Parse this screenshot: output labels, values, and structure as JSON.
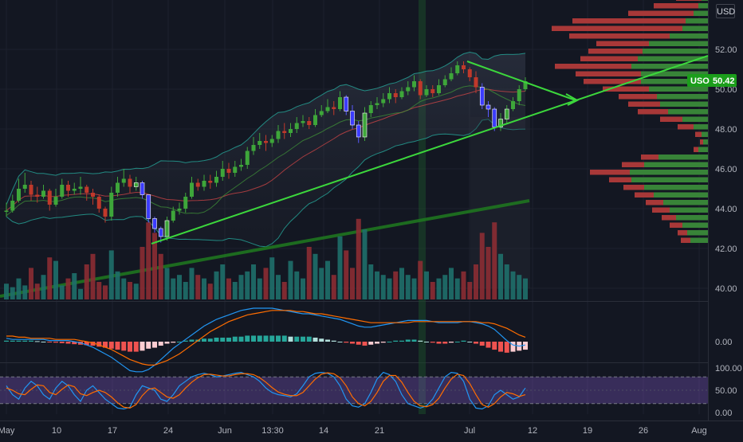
{
  "chart_data": {
    "type": "candlestick",
    "symbol": "USO",
    "currency": "USD",
    "last_price": "50.42",
    "x_ticks": [
      "May",
      "10",
      "17",
      "24",
      "Jun",
      "13:30",
      "14",
      "21",
      "Jul",
      "12",
      "19",
      "26",
      "Aug"
    ],
    "price_axis": {
      "ylim": [
        39.5,
        52.5
      ],
      "ticks": [
        "52.00",
        "50.00",
        "48.00",
        "46.00",
        "44.00",
        "42.00",
        "40.00"
      ]
    },
    "macd_axis": {
      "ticks": [
        "0.00"
      ]
    },
    "stoch_axis": {
      "ylim": [
        0,
        100
      ],
      "ticks": [
        "100.00",
        "50.00",
        "0.00"
      ],
      "bands": [
        20,
        80
      ]
    },
    "candles": {
      "start_close": 43.9,
      "closes": [
        43.9,
        44.4,
        45.0,
        45.2,
        44.7,
        44.6,
        44.9,
        44.2,
        44.6,
        45.2,
        44.9,
        45.0,
        45.1,
        44.8,
        44.6,
        44.0,
        43.6,
        44.8,
        45.3,
        45.5,
        45.1,
        45.3,
        44.7,
        43.5,
        43.0,
        42.6,
        43.4,
        43.9,
        44.0,
        44.6,
        45.3,
        45.1,
        45.4,
        45.3,
        45.6,
        46.0,
        45.8,
        46.1,
        46.2,
        46.9,
        47.2,
        47.4,
        47.3,
        47.5,
        47.9,
        47.8,
        48.0,
        48.3,
        48.4,
        48.2,
        48.7,
        48.9,
        49.1,
        49.0,
        49.6,
        48.9,
        48.2,
        47.6,
        48.8,
        49.2,
        49.3,
        49.5,
        49.8,
        49.6,
        49.9,
        50.1,
        50.4,
        49.7,
        50.0,
        49.8,
        50.2,
        50.5,
        50.8,
        51.2,
        51.0,
        50.6,
        50.1,
        49.2,
        49.0,
        48.1,
        48.5,
        49.0,
        49.4,
        50.0,
        50.4
      ],
      "highs": [
        44.3,
        44.7,
        45.5,
        45.8,
        45.4,
        45.1,
        45.2,
        45.0,
        45.0,
        45.5,
        45.4,
        45.3,
        45.6,
        45.2,
        45.0,
        44.7,
        44.1,
        45.1,
        45.6,
        46.0,
        45.7,
        45.6,
        45.4,
        44.2,
        43.6,
        43.1,
        43.6,
        44.1,
        44.3,
        44.8,
        45.6,
        45.5,
        45.7,
        45.7,
        45.9,
        46.4,
        46.3,
        46.4,
        46.5,
        47.1,
        47.6,
        47.8,
        47.7,
        47.7,
        48.2,
        48.3,
        48.3,
        48.6,
        48.7,
        48.6,
        49.0,
        49.2,
        49.5,
        49.4,
        49.9,
        49.7,
        49.2,
        48.4,
        49.1,
        49.4,
        49.6,
        49.8,
        50.1,
        50.0,
        50.1,
        50.4,
        50.7,
        50.5,
        50.2,
        50.2,
        50.5,
        50.7,
        51.1,
        51.4,
        51.4,
        51.1,
        50.9,
        50.3,
        49.4,
        49.1,
        48.8,
        49.2,
        49.6,
        50.2,
        50.6
      ],
      "lows": [
        43.6,
        43.8,
        44.3,
        44.8,
        44.4,
        44.3,
        44.5,
        43.9,
        44.1,
        44.5,
        44.6,
        44.7,
        44.7,
        44.4,
        44.2,
        43.8,
        43.3,
        43.4,
        44.6,
        45.1,
        44.8,
        44.9,
        44.5,
        43.3,
        42.8,
        42.3,
        42.4,
        43.3,
        43.7,
        43.8,
        44.5,
        44.9,
        44.9,
        45.0,
        45.1,
        45.4,
        45.5,
        45.6,
        45.9,
        46.0,
        46.7,
        47.0,
        46.9,
        47.1,
        47.3,
        47.5,
        47.6,
        47.8,
        48.1,
        48.0,
        48.1,
        48.6,
        48.8,
        48.7,
        48.9,
        48.7,
        48.0,
        47.3,
        47.4,
        48.6,
        49.0,
        49.1,
        49.3,
        49.3,
        49.5,
        49.7,
        49.9,
        49.5,
        49.6,
        49.6,
        49.7,
        50.1,
        50.4,
        50.7,
        50.8,
        50.4,
        49.8,
        49.0,
        48.6,
        47.9,
        47.9,
        48.3,
        48.9,
        49.2,
        49.9
      ],
      "volumes": [
        9,
        7,
        12,
        8,
        18,
        9,
        14,
        24,
        22,
        8,
        12,
        15,
        6,
        20,
        26,
        10,
        8,
        28,
        16,
        12,
        10,
        9,
        30,
        44,
        38,
        26,
        18,
        12,
        14,
        10,
        18,
        14,
        12,
        9,
        16,
        20,
        12,
        10,
        14,
        16,
        20,
        12,
        18,
        24,
        14,
        10,
        22,
        16,
        12,
        30,
        26,
        18,
        22,
        14,
        36,
        28,
        18,
        46,
        40,
        20,
        16,
        14,
        12,
        16,
        18,
        14,
        12,
        22,
        16,
        10,
        12,
        14,
        18,
        12,
        16,
        10,
        20,
        38,
        30,
        44,
        26,
        20,
        16,
        14,
        12
      ]
    },
    "volume_profile": {
      "price_start": 42.4,
      "price_step": 0.38,
      "total": [
        1.7,
        1.9,
        2.4,
        2.9,
        3.5,
        3.9,
        4.6,
        5.3,
        6.2,
        7.4,
        5.4,
        4.2,
        0.9,
        0.5,
        0.8,
        1.9,
        3.0,
        4.4,
        5.0,
        5.6,
        6.6,
        7.8,
        8.3,
        9.6,
        8.0,
        7.5,
        7.0,
        8.7,
        9.8,
        8.5,
        5.0,
        3.4,
        2.0,
        1.2,
        0.7
      ],
      "buy": [
        1.1,
        1.3,
        1.6,
        2.0,
        2.4,
        2.8,
        3.4,
        4.0,
        4.8,
        4.9,
        4.0,
        3.1,
        0.6,
        0.3,
        0.4,
        0.9,
        1.6,
        2.5,
        3.0,
        3.2,
        3.7,
        4.2,
        4.2,
        4.8,
        4.4,
        4.1,
        3.7,
        2.4,
        1.6,
        1.4,
        0.9,
        0.6,
        0.4,
        0.3,
        0.2
      ]
    },
    "macd": {
      "hist": [
        1,
        1,
        1,
        1,
        1,
        0.5,
        0,
        -0.5,
        -1,
        -1.5,
        -2,
        -2.5,
        -3,
        -3.5,
        -4,
        -5,
        -6,
        -7,
        -8,
        -9,
        -10,
        -10,
        -9,
        -7,
        -6,
        -4,
        -2,
        -1,
        0,
        1,
        2,
        2,
        3,
        3,
        4,
        4,
        4,
        5,
        5,
        6,
        6,
        6,
        6,
        6,
        6,
        6,
        5,
        5,
        5,
        5,
        4,
        3,
        2,
        1,
        0,
        -1,
        -2,
        -3,
        -4,
        -3,
        -2,
        -1,
        0,
        1,
        1,
        2,
        2,
        1,
        0,
        -1,
        -2,
        -2,
        -1,
        0,
        1,
        0,
        -2,
        -4,
        -6,
        -8,
        -10,
        -11,
        -10,
        -9,
        -8
      ],
      "macd_line": [
        3,
        2,
        2,
        2,
        2,
        2,
        2,
        1,
        1,
        1,
        1,
        0,
        -1,
        -3,
        -5,
        -8,
        -11,
        -14,
        -18,
        -22,
        -26,
        -27,
        -27,
        -25,
        -21,
        -16,
        -11,
        -6,
        -2,
        2,
        6,
        10,
        14,
        17,
        20,
        22,
        24,
        26,
        28,
        29,
        30,
        30,
        30,
        30,
        29,
        28,
        27,
        26,
        25,
        25,
        24,
        23,
        22,
        21,
        20,
        18,
        16,
        14,
        13,
        13,
        14,
        15,
        16,
        17,
        18,
        19,
        19,
        19,
        19,
        18,
        17,
        17,
        17,
        17,
        18,
        18,
        17,
        16,
        14,
        11,
        6,
        1,
        -3,
        -4,
        -3
      ],
      "signal_line": [
        5,
        5,
        4,
        4,
        3,
        3,
        3,
        3,
        2,
        2,
        2,
        2,
        1,
        0,
        -1,
        -3,
        -5,
        -7,
        -10,
        -13,
        -16,
        -18,
        -20,
        -21,
        -21,
        -19,
        -17,
        -14,
        -11,
        -7,
        -3,
        1,
        5,
        9,
        12,
        15,
        18,
        20,
        22,
        24,
        25,
        26,
        27,
        28,
        28,
        28,
        28,
        27,
        27,
        26,
        25,
        25,
        24,
        23,
        22,
        21,
        20,
        19,
        18,
        17,
        17,
        17,
        17,
        17,
        17,
        17,
        18,
        18,
        18,
        18,
        18,
        18,
        18,
        18,
        18,
        18,
        18,
        17,
        17,
        16,
        14,
        12,
        9,
        6,
        4
      ]
    },
    "stochastic": {
      "k": [
        60,
        40,
        30,
        55,
        70,
        60,
        40,
        30,
        55,
        70,
        60,
        40,
        25,
        50,
        60,
        45,
        30,
        20,
        10,
        8,
        12,
        40,
        60,
        55,
        50,
        30,
        25,
        40,
        60,
        70,
        80,
        85,
        88,
        85,
        80,
        82,
        85,
        88,
        90,
        85,
        80,
        70,
        55,
        45,
        40,
        38,
        35,
        42,
        60,
        80,
        88,
        90,
        88,
        80,
        60,
        30,
        15,
        12,
        20,
        45,
        75,
        90,
        85,
        70,
        40,
        20,
        15,
        10,
        15,
        30,
        55,
        80,
        90,
        88,
        70,
        30,
        10,
        8,
        15,
        40,
        50,
        40,
        30,
        35,
        55
      ],
      "d": [
        55,
        50,
        42,
        40,
        52,
        62,
        60,
        45,
        40,
        52,
        62,
        58,
        42,
        38,
        45,
        50,
        45,
        35,
        22,
        12,
        10,
        18,
        38,
        52,
        55,
        45,
        35,
        32,
        40,
        55,
        68,
        78,
        85,
        86,
        84,
        82,
        82,
        85,
        87,
        87,
        85,
        78,
        68,
        56,
        46,
        41,
        38,
        38,
        45,
        60,
        75,
        86,
        89,
        87,
        78,
        60,
        35,
        20,
        15,
        25,
        45,
        70,
        83,
        83,
        68,
        45,
        25,
        15,
        13,
        18,
        32,
        55,
        75,
        86,
        83,
        65,
        40,
        18,
        12,
        20,
        35,
        45,
        42,
        36,
        40
      ]
    }
  }
}
